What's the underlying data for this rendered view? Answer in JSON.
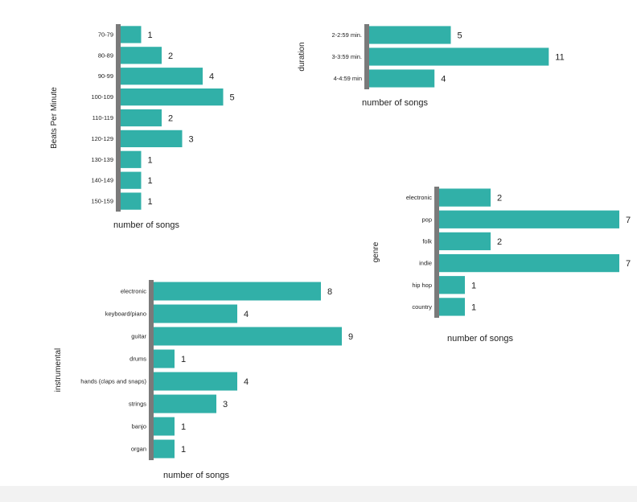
{
  "colors": {
    "bar": "#31b0a8",
    "axis": "#7a7a7a",
    "text": "#222222",
    "band": "#f2f2f2"
  },
  "chart_data": [
    {
      "type": "bar",
      "orientation": "horizontal",
      "title": "",
      "ylabel": "Beats Per Minute",
      "xlabel": "number of songs",
      "categories": [
        "70-79",
        "80-89",
        "90-99",
        "100-109",
        "110-119",
        "120-129",
        "130-139",
        "140-149",
        "150-159"
      ],
      "values": [
        1,
        2,
        4,
        5,
        2,
        3,
        1,
        1,
        1
      ],
      "data_labels": true,
      "grid": false
    },
    {
      "type": "bar",
      "orientation": "horizontal",
      "title": "",
      "ylabel": "duration",
      "xlabel": "number of songs",
      "categories": [
        "2-2:59 min.",
        "3-3:59 min.",
        "4-4:59 min"
      ],
      "values": [
        5,
        11,
        4
      ],
      "data_labels": true,
      "grid": false
    },
    {
      "type": "bar",
      "orientation": "horizontal",
      "title": "",
      "ylabel": "genre",
      "xlabel": "number of songs",
      "categories": [
        "electronic",
        "pop",
        "folk",
        "indie",
        "hip hop",
        "country"
      ],
      "values": [
        2,
        7,
        2,
        7,
        1,
        1
      ],
      "data_labels": true,
      "grid": false
    },
    {
      "type": "bar",
      "orientation": "horizontal",
      "title": "",
      "ylabel": "instrumental",
      "xlabel": "number of songs",
      "categories": [
        "electronic",
        "keyboard/piano",
        "guitar",
        "drums",
        "hands (claps and snaps)",
        "strings",
        "banjo",
        "organ"
      ],
      "values": [
        8,
        4,
        9,
        1,
        4,
        3,
        1,
        1
      ],
      "data_labels": true,
      "grid": false
    }
  ]
}
